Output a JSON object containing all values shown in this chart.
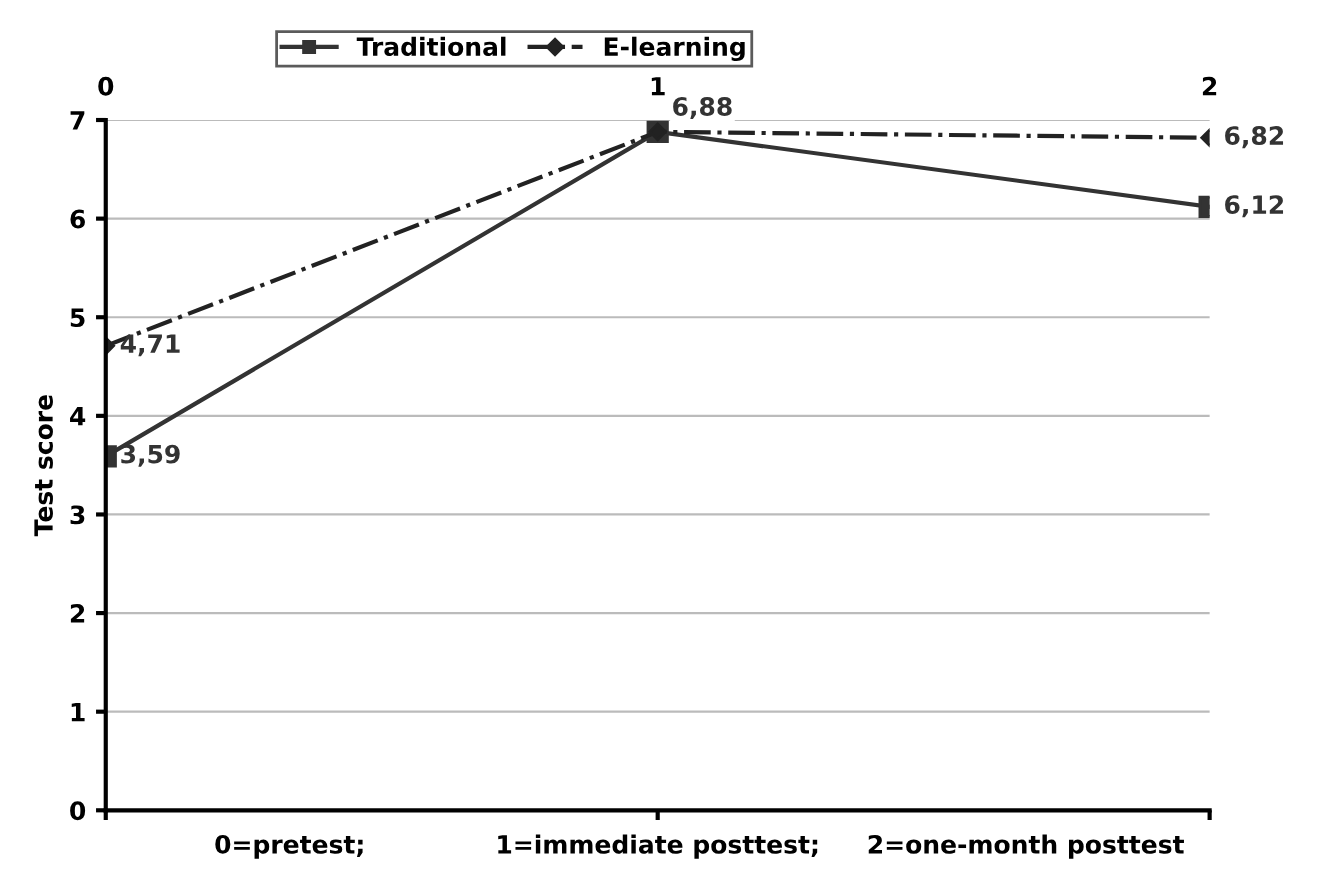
{
  "chart_data": {
    "type": "line",
    "ylabel": "Test score",
    "xlim": [
      0,
      2
    ],
    "xticks": [
      0,
      1,
      2
    ],
    "ylim": [
      0,
      7
    ],
    "yticks": [
      0,
      1,
      2,
      3,
      4,
      5,
      6,
      7
    ],
    "x": [
      0,
      1,
      2
    ],
    "grid": "y",
    "legend": "top",
    "series": [
      {
        "name": "Traditional",
        "color": "#333333",
        "values": [
          3.59,
          6.88,
          6.12
        ],
        "marker": "square",
        "line_style": "solid",
        "value_labels": [
          "3,59",
          null,
          "6,12"
        ]
      },
      {
        "name": "E-learning",
        "color": "#222222",
        "values": [
          4.71,
          6.88,
          6.82
        ],
        "marker": "diamond",
        "line_style": "dashdot",
        "value_labels": [
          "4,71",
          "6,88",
          "6,82"
        ]
      }
    ],
    "annotations": [
      "0=pretest;",
      "1=immediate posttest;",
      "2=one-month posttest"
    ]
  }
}
